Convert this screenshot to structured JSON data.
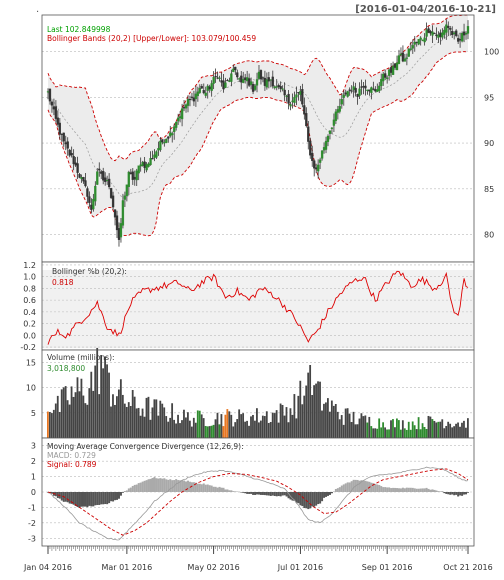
{
  "chart_data": [
    {
      "type": "candlestick",
      "panel": "price",
      "date_range_label": "[2016-01-04/2016-10-21]",
      "legend": [
        {
          "text": "Last 102.849998",
          "color": "#00a000"
        },
        {
          "text": "Bollinger Bands (20,2) [Upper/Lower]: 103.079/100.459",
          "color": "#cc0000"
        }
      ],
      "ylim": [
        77,
        104
      ],
      "yticks": [
        80,
        85,
        90,
        95,
        100
      ],
      "x_labels": [
        "Jan 04 2016",
        "Mar 01 2016",
        "May 02 2016",
        "Jul 01 2016",
        "Sep 01 2016",
        "Oct 21 2016"
      ],
      "close_anchors": [
        [
          0,
          95.5
        ],
        [
          4,
          92.5
        ],
        [
          8,
          90.0
        ],
        [
          13,
          88.0
        ],
        [
          17,
          86.0
        ],
        [
          20,
          84.5
        ],
        [
          22,
          82.5
        ],
        [
          25,
          87.0
        ],
        [
          28,
          86.0
        ],
        [
          31,
          85.5
        ],
        [
          34,
          82.0
        ],
        [
          36,
          79.0
        ],
        [
          38,
          83.5
        ],
        [
          41,
          86.5
        ],
        [
          44,
          86.0
        ],
        [
          47,
          88.0
        ],
        [
          50,
          87.5
        ],
        [
          53,
          88.5
        ],
        [
          56,
          89.5
        ],
        [
          59,
          90.5
        ],
        [
          62,
          91.0
        ],
        [
          65,
          92.5
        ],
        [
          68,
          93.5
        ],
        [
          71,
          94.5
        ],
        [
          74,
          95.0
        ],
        [
          77,
          96.0
        ],
        [
          80,
          95.5
        ],
        [
          83,
          96.5
        ],
        [
          86,
          97.5
        ],
        [
          89,
          96.0
        ],
        [
          92,
          97.0
        ],
        [
          95,
          98.0
        ],
        [
          98,
          96.5
        ],
        [
          101,
          97.0
        ],
        [
          104,
          96.0
        ],
        [
          107,
          97.5
        ],
        [
          110,
          96.5
        ],
        [
          113,
          97.0
        ],
        [
          116,
          96.0
        ],
        [
          119,
          95.5
        ],
        [
          122,
          94.5
        ],
        [
          125,
          95.0
        ],
        [
          128,
          95.5
        ],
        [
          130,
          93.0
        ],
        [
          132,
          90.0
        ],
        [
          134,
          88.0
        ],
        [
          136,
          87.0
        ],
        [
          139,
          89.0
        ],
        [
          142,
          91.0
        ],
        [
          145,
          92.5
        ],
        [
          148,
          94.0
        ],
        [
          151,
          95.5
        ],
        [
          154,
          96.0
        ],
        [
          157,
          95.5
        ],
        [
          160,
          96.5
        ],
        [
          163,
          96.0
        ],
        [
          166,
          95.5
        ],
        [
          169,
          97.0
        ],
        [
          172,
          97.5
        ],
        [
          175,
          98.0
        ],
        [
          178,
          99.5
        ],
        [
          181,
          99.0
        ],
        [
          184,
          100.5
        ],
        [
          187,
          101.0
        ],
        [
          190,
          101.5
        ],
        [
          193,
          102.5
        ],
        [
          196,
          102.0
        ],
        [
          199,
          101.5
        ],
        [
          202,
          103.0
        ],
        [
          205,
          102.0
        ],
        [
          208,
          101.0
        ],
        [
          211,
          102.0
        ],
        [
          213,
          102.85
        ]
      ]
    },
    {
      "type": "line",
      "panel": "bollinger_pctb",
      "title": "Bollinger %b (20,2):",
      "value": "0.818",
      "ylim": [
        -0.25,
        1.25
      ],
      "yticks": [
        -0.2,
        0.0,
        0.2,
        0.4,
        0.6,
        0.8,
        1.0,
        1.2
      ],
      "anchors": [
        [
          0,
          -0.1
        ],
        [
          5,
          0.05
        ],
        [
          10,
          0.0
        ],
        [
          15,
          0.2
        ],
        [
          20,
          0.35
        ],
        [
          25,
          0.55
        ],
        [
          30,
          0.15
        ],
        [
          36,
          0.0
        ],
        [
          42,
          0.55
        ],
        [
          48,
          0.75
        ],
        [
          54,
          0.8
        ],
        [
          60,
          0.85
        ],
        [
          66,
          0.9
        ],
        [
          72,
          0.75
        ],
        [
          78,
          0.9
        ],
        [
          84,
          1.0
        ],
        [
          90,
          0.65
        ],
        [
          96,
          0.75
        ],
        [
          102,
          0.6
        ],
        [
          108,
          0.8
        ],
        [
          114,
          0.7
        ],
        [
          120,
          0.5
        ],
        [
          126,
          0.25
        ],
        [
          132,
          -0.1
        ],
        [
          136,
          0.05
        ],
        [
          142,
          0.4
        ],
        [
          148,
          0.7
        ],
        [
          154,
          0.9
        ],
        [
          160,
          1.0
        ],
        [
          166,
          0.6
        ],
        [
          172,
          0.9
        ],
        [
          178,
          1.1
        ],
        [
          184,
          0.85
        ],
        [
          190,
          0.95
        ],
        [
          196,
          0.8
        ],
        [
          202,
          1.0
        ],
        [
          205,
          0.5
        ],
        [
          208,
          0.3
        ],
        [
          211,
          0.95
        ],
        [
          213,
          0.818
        ]
      ]
    },
    {
      "type": "bar",
      "panel": "volume",
      "title": "Volume (millions):",
      "value": "3,018,800",
      "ylim": [
        0,
        17.5
      ],
      "yticks": [
        5,
        10,
        15
      ],
      "anchors": [
        [
          0,
          7.0
        ],
        [
          5,
          6.0
        ],
        [
          10,
          8.0
        ],
        [
          15,
          9.0
        ],
        [
          20,
          10.0
        ],
        [
          24,
          12.0
        ],
        [
          27,
          16.0
        ],
        [
          30,
          11.0
        ],
        [
          34,
          9.0
        ],
        [
          38,
          8.0
        ],
        [
          44,
          6.5
        ],
        [
          50,
          6.0
        ],
        [
          56,
          5.5
        ],
        [
          62,
          5.0
        ],
        [
          70,
          4.0
        ],
        [
          80,
          3.8
        ],
        [
          90,
          4.2
        ],
        [
          100,
          4.0
        ],
        [
          110,
          4.5
        ],
        [
          118,
          5.0
        ],
        [
          124,
          6.0
        ],
        [
          130,
          9.0
        ],
        [
          134,
          11.0
        ],
        [
          138,
          8.0
        ],
        [
          144,
          6.0
        ],
        [
          150,
          4.5
        ],
        [
          160,
          3.5
        ],
        [
          170,
          3.0
        ],
        [
          180,
          2.8
        ],
        [
          190,
          3.0
        ],
        [
          200,
          3.5
        ],
        [
          205,
          3.2
        ],
        [
          213,
          3.0
        ]
      ]
    },
    {
      "type": "line",
      "panel": "macd",
      "title": "Moving Average Convergence Divergence (12,26,9):",
      "macd_label": "MACD: 0.729",
      "signal_label": "Signal: 0.789",
      "ylim": [
        -3.5,
        3.5
      ],
      "yticks": [
        -3,
        -2,
        -1,
        0,
        1,
        2,
        3
      ],
      "macd_anchors": [
        [
          0,
          0.0
        ],
        [
          8,
          -0.9
        ],
        [
          16,
          -2.0
        ],
        [
          24,
          -2.6
        ],
        [
          30,
          -3.0
        ],
        [
          36,
          -3.1
        ],
        [
          42,
          -2.3
        ],
        [
          48,
          -1.5
        ],
        [
          54,
          -0.6
        ],
        [
          60,
          0.0
        ],
        [
          66,
          0.6
        ],
        [
          72,
          1.0
        ],
        [
          80,
          1.3
        ],
        [
          88,
          1.4
        ],
        [
          96,
          1.2
        ],
        [
          104,
          0.9
        ],
        [
          112,
          0.6
        ],
        [
          120,
          0.2
        ],
        [
          126,
          -0.7
        ],
        [
          132,
          -1.8
        ],
        [
          138,
          -2.0
        ],
        [
          144,
          -1.4
        ],
        [
          150,
          -0.5
        ],
        [
          156,
          0.4
        ],
        [
          162,
          0.9
        ],
        [
          168,
          1.1
        ],
        [
          176,
          1.2
        ],
        [
          184,
          1.4
        ],
        [
          192,
          1.6
        ],
        [
          200,
          1.5
        ],
        [
          206,
          1.1
        ],
        [
          210,
          0.8
        ],
        [
          213,
          0.729
        ]
      ],
      "signal_anchors": [
        [
          0,
          0.0
        ],
        [
          8,
          -0.3
        ],
        [
          16,
          -1.0
        ],
        [
          24,
          -1.7
        ],
        [
          32,
          -2.4
        ],
        [
          38,
          -2.8
        ],
        [
          44,
          -2.5
        ],
        [
          50,
          -2.0
        ],
        [
          56,
          -1.3
        ],
        [
          62,
          -0.6
        ],
        [
          68,
          0.0
        ],
        [
          76,
          0.6
        ],
        [
          84,
          1.0
        ],
        [
          92,
          1.2
        ],
        [
          100,
          1.15
        ],
        [
          108,
          0.95
        ],
        [
          116,
          0.7
        ],
        [
          122,
          0.3
        ],
        [
          128,
          -0.2
        ],
        [
          134,
          -0.9
        ],
        [
          140,
          -1.4
        ],
        [
          146,
          -1.3
        ],
        [
          152,
          -0.8
        ],
        [
          158,
          -0.2
        ],
        [
          164,
          0.4
        ],
        [
          170,
          0.8
        ],
        [
          178,
          1.0
        ],
        [
          186,
          1.2
        ],
        [
          194,
          1.4
        ],
        [
          202,
          1.5
        ],
        [
          208,
          1.2
        ],
        [
          213,
          0.789
        ]
      ]
    }
  ]
}
